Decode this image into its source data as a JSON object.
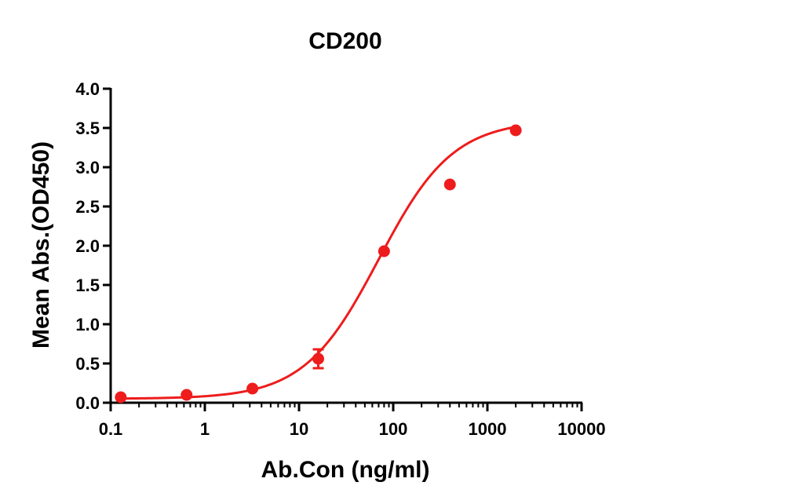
{
  "chart_data": {
    "type": "scatter",
    "title": "CD200",
    "xlabel": "Ab.Con (ng/ml)",
    "ylabel": "Mean Abs.(OD450)",
    "x_scale": "log",
    "xlim": [
      0.1,
      10000
    ],
    "ylim": [
      0,
      4.0
    ],
    "x_ticks": [
      0.1,
      1,
      10,
      100,
      1000,
      10000
    ],
    "x_tick_labels": [
      "0.1",
      "1",
      "10",
      "100",
      "1000",
      "10000"
    ],
    "y_ticks": [
      0,
      0.5,
      1.0,
      1.5,
      2.0,
      2.5,
      3.0,
      3.5,
      4.0
    ],
    "y_tick_labels": [
      "0.0",
      "0.5",
      "1.0",
      "1.5",
      "2.0",
      "2.5",
      "3.0",
      "3.5",
      "4.0"
    ],
    "grid": false,
    "legend": "none",
    "color": "#ee1c1c",
    "series": [
      {
        "points": [
          {
            "x": 0.128,
            "y": 0.07,
            "err": 0.0
          },
          {
            "x": 0.64,
            "y": 0.1,
            "err": 0.0
          },
          {
            "x": 3.2,
            "y": 0.18,
            "err": 0.0
          },
          {
            "x": 16,
            "y": 0.56,
            "err": 0.12
          },
          {
            "x": 80,
            "y": 1.93,
            "err": 0.0
          },
          {
            "x": 400,
            "y": 2.78,
            "err": 0.0
          },
          {
            "x": 2000,
            "y": 3.47,
            "err": 0.0
          }
        ],
        "fit": {
          "model": "4PL",
          "bottom": 0.05,
          "top": 3.6,
          "ec50": 70,
          "hill": 1.1
        }
      }
    ]
  }
}
